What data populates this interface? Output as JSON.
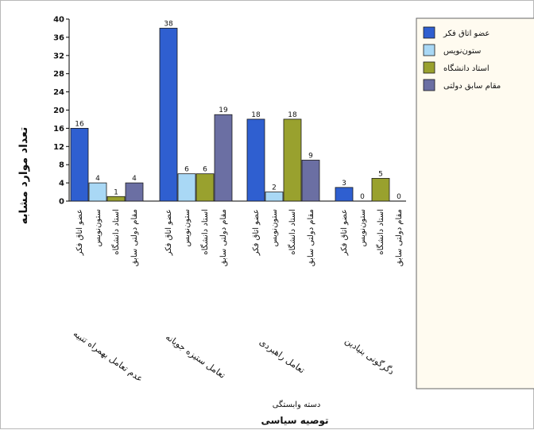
{
  "chart_data": {
    "type": "bar",
    "title": "",
    "ylabel": "تعداد موارد مشابه",
    "xlabel": "توصیه سیاسی",
    "xsublabel": "دسته وابستگی",
    "ylim": [
      0,
      40
    ],
    "yticks": [
      0,
      4,
      8,
      12,
      16,
      20,
      24,
      28,
      32,
      36,
      40
    ],
    "grid": false,
    "legend_position": "right",
    "groups": [
      "عدم تعامل بهمراه تنبیه",
      "تعامل ستیزه جویانه",
      "تعامل راهبردی",
      "دگرگونی بنیادین"
    ],
    "categories": [
      "عضو اتاق فکر",
      "ستون‌نویس",
      "استاد دانشگاه",
      "مقام دولتی سابق"
    ],
    "series": [
      {
        "name": "عضو اتاق فکر",
        "color": "#2f5fd0",
        "values": [
          16,
          38,
          18,
          3
        ]
      },
      {
        "name": "ستون‌نویس",
        "color": "#a9d8f5",
        "values": [
          4,
          6,
          2,
          0
        ]
      },
      {
        "name": "استاد دانشگاه",
        "color": "#99a12e",
        "values": [
          1,
          6,
          18,
          5
        ]
      },
      {
        "name": "مقام سابق دولتی",
        "color": "#6b6fa3",
        "values": [
          4,
          19,
          9,
          0
        ]
      }
    ],
    "bar_category_labels": [
      "عضو اتاق فکر",
      "ستون‌نویس",
      "استاد دانشگاه",
      "مقام دولتی سابق"
    ]
  }
}
